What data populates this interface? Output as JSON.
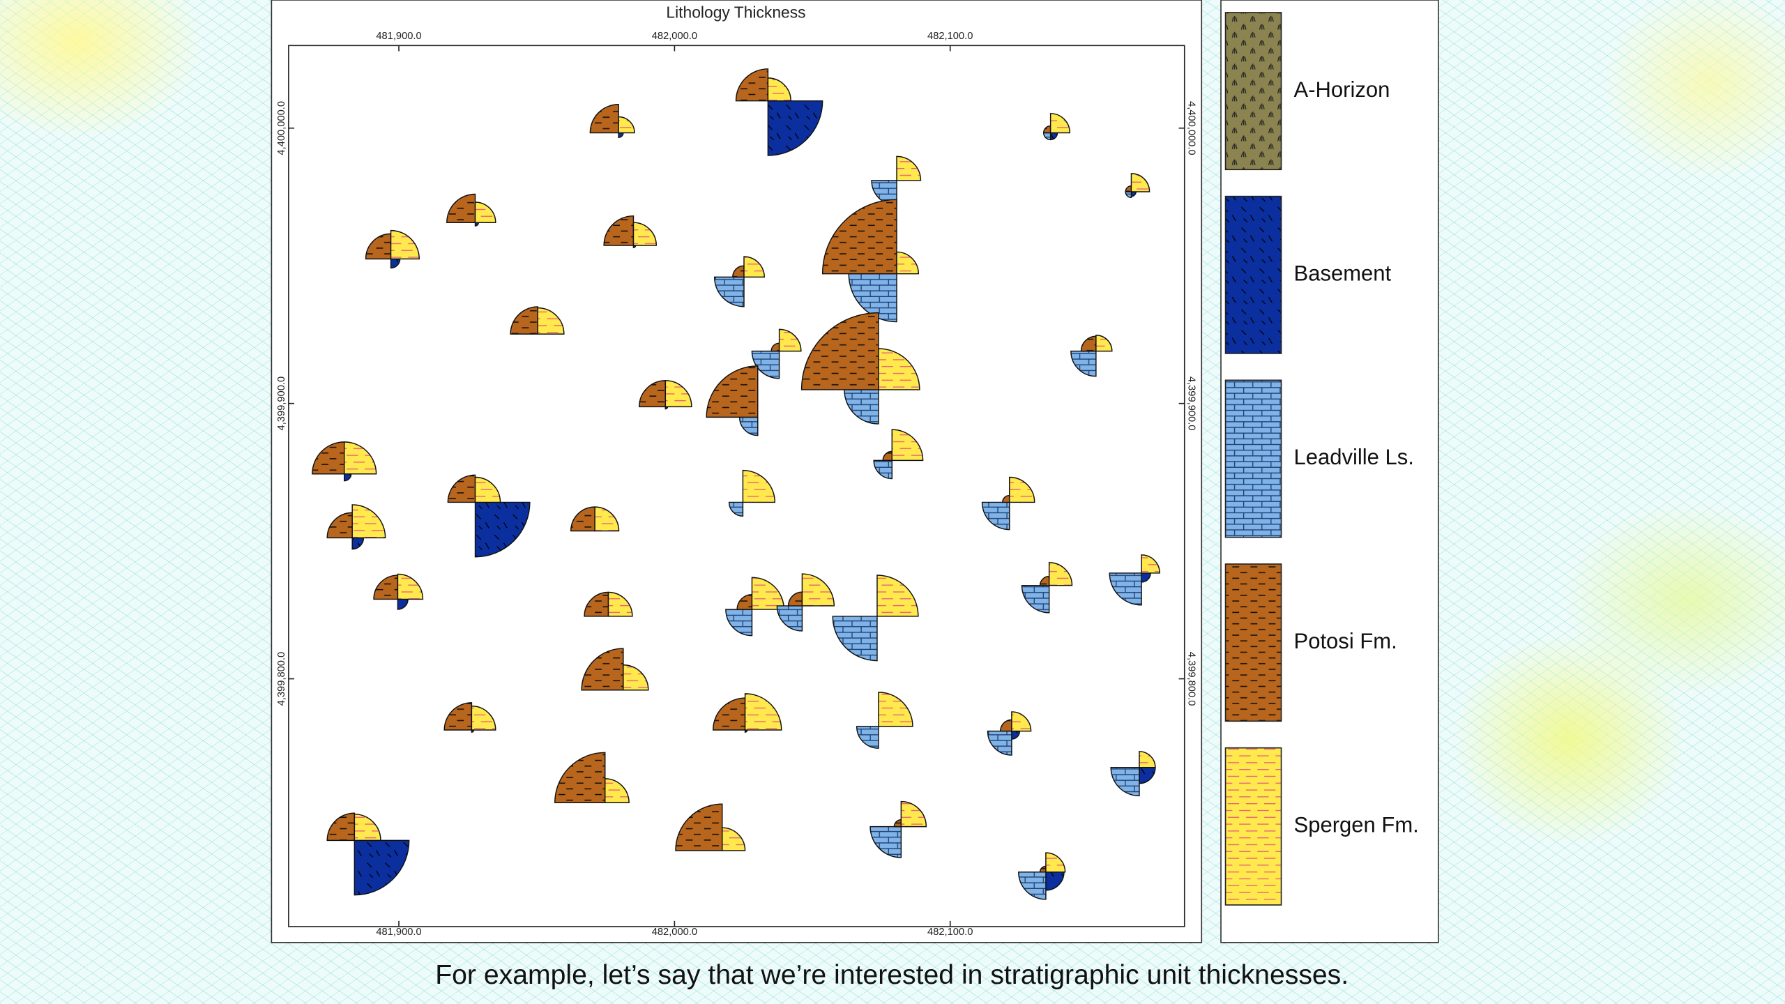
{
  "caption": "For example, let’s say that we’re interested in stratigraphic unit thicknesses.",
  "chart_data": {
    "type": "glyph-map",
    "title": "Lithology Thickness",
    "xlim": [
      481860,
      482185
    ],
    "ylim": [
      4399710,
      4400030
    ],
    "xticks": [
      {
        "value": 481900,
        "label": "481,900.0"
      },
      {
        "value": 482000,
        "label": "482,000.0"
      },
      {
        "value": 482100,
        "label": "482,100.0"
      }
    ],
    "yticks": [
      {
        "value": 4399800,
        "label": "4,399,800.0"
      },
      {
        "value": 4399900,
        "label": "4,399,900.0"
      },
      {
        "value": 4400000,
        "label": "4,400,000.0"
      }
    ],
    "x": [
      482033.9,
      481979.7,
      482136.4,
      482080.6,
      482165.7,
      481927.7,
      481985.1,
      481897.1,
      482080.6,
      482025.2,
      481950.4,
      482038.0,
      482074.0,
      482152.9,
      481996.7,
      482030.2,
      482078.9,
      481880.2,
      481927.7,
      482024.8,
      482121.5,
      481883.1,
      481971.1,
      481899.6,
      482135.9,
      482169.4,
      481976.0,
      482028.1,
      482046.3,
      482073.5,
      481981.4,
      481926.4,
      482025.6,
      482074.0,
      482122.3,
      482168.6,
      481974.8,
      481883.9,
      482017.3,
      482082.2,
      482134.7
    ],
    "y": [
      4400009.9,
      4399998.3,
      4399998.3,
      4399981.0,
      4399976.9,
      4399965.7,
      4399957.4,
      4399952.5,
      4399947.1,
      4399945.9,
      4399925.2,
      4399919.0,
      4399905.0,
      4399919.0,
      4399898.8,
      4399895.0,
      4399879.3,
      4399874.4,
      4399864.1,
      4399864.1,
      4399864.1,
      4399851.2,
      4399853.7,
      4399828.9,
      4399833.9,
      4399838.4,
      4399822.7,
      4399825.2,
      4399826.5,
      4399822.7,
      4399795.9,
      4399781.4,
      4399781.4,
      4399782.7,
      4399781.0,
      4399767.8,
      4399755.0,
      4399741.3,
      4399737.6,
      4399746.3,
      4399729.8
    ],
    "series": [
      {
        "name": "A-Horizon",
        "color": "#8c8450",
        "values": [
          0,
          0,
          0,
          0,
          0,
          0,
          0,
          0,
          0,
          0,
          0,
          0,
          0,
          0,
          0,
          0,
          0,
          0,
          0,
          0,
          0,
          0,
          0,
          0,
          0,
          0,
          0,
          0,
          0,
          0,
          0,
          0,
          0,
          0,
          0,
          0,
          0,
          0,
          0,
          0,
          0
        ]
      },
      {
        "name": "Basement",
        "color": "#0b2f9e",
        "values": [
          19.8,
          1.7,
          2.5,
          0,
          1.7,
          1.2,
          0.8,
          3.3,
          0,
          0,
          0,
          0,
          0,
          0,
          0.8,
          0,
          0,
          2.5,
          19.8,
          0,
          0,
          4.1,
          0,
          3.7,
          0,
          3.3,
          0,
          0,
          0,
          0,
          0,
          0.8,
          0.8,
          0,
          2.9,
          5.8,
          0,
          19.8,
          0,
          0,
          6.6
        ]
      },
      {
        "name": "Leadville Ls.",
        "color": "#80b4e8",
        "values": [
          0,
          0,
          2.5,
          9.1,
          2.1,
          0,
          0,
          0,
          17.4,
          10.7,
          0,
          9.9,
          12.4,
          9.1,
          0,
          6.6,
          6.6,
          0,
          0,
          5.0,
          9.9,
          0,
          0,
          0,
          9.9,
          11.6,
          0,
          9.5,
          9.1,
          16.1,
          0,
          0,
          0,
          7.9,
          8.7,
          10.3,
          0,
          0,
          0,
          11.2,
          9.9
        ]
      },
      {
        "name": "Potosi Fm.",
        "color": "#b8661e",
        "values": [
          11.6,
          10.3,
          2.5,
          0,
          2.1,
          10.3,
          10.7,
          9.1,
          26.9,
          4.1,
          9.9,
          2.9,
          27.9,
          5.4,
          9.5,
          18.6,
          3.3,
          11.6,
          9.9,
          0,
          2.5,
          9.1,
          8.7,
          8.7,
          3.3,
          0,
          8.7,
          5.4,
          5.0,
          0,
          15.1,
          9.9,
          11.6,
          0,
          4.1,
          0,
          18.2,
          9.9,
          16.9,
          2.5,
          2.1
        ]
      },
      {
        "name": "Spergen Fm.",
        "color": "#ffe94c",
        "values": [
          8.3,
          5.8,
          7.0,
          8.7,
          6.6,
          7.4,
          8.3,
          10.3,
          7.9,
          7.4,
          9.5,
          7.9,
          14.9,
          5.8,
          9.5,
          0,
          11.2,
          11.6,
          9.1,
          11.6,
          9.1,
          12.0,
          8.7,
          9.1,
          8.3,
          6.6,
          8.7,
          11.6,
          11.6,
          14.9,
          9.1,
          8.7,
          13.2,
          12.4,
          7.0,
          5.8,
          8.7,
          9.5,
          8.3,
          9.1,
          7.0
        ]
      }
    ]
  }
}
